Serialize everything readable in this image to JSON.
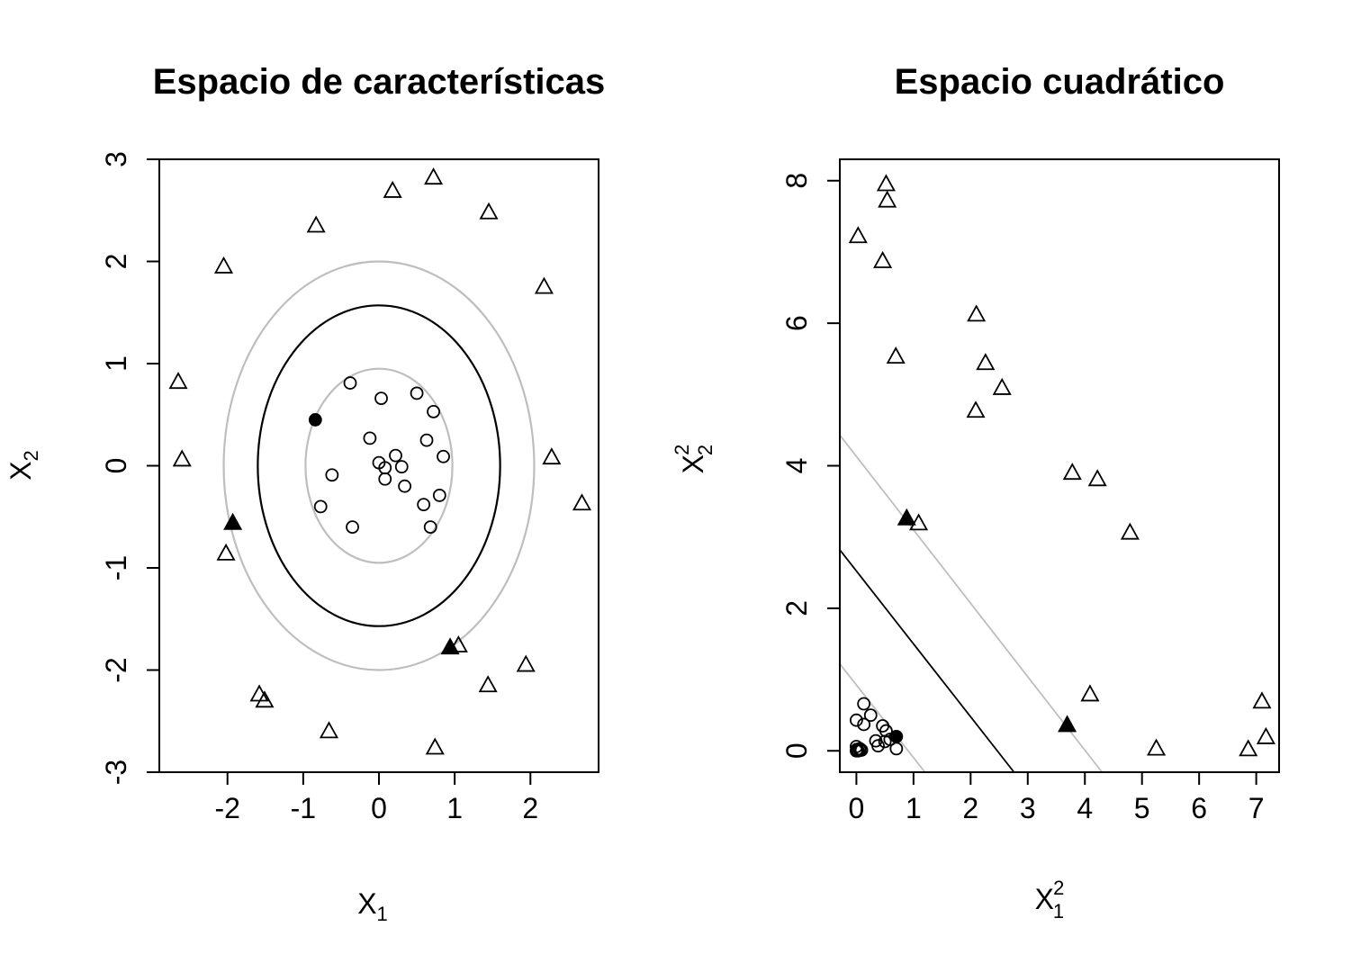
{
  "chart_data": [
    {
      "type": "scatter",
      "title": "Espacio de características",
      "xlabel": "X",
      "xlabel_sub": "1",
      "ylabel": "X",
      "ylabel_sub": "2",
      "xlim": [
        -2.9,
        2.9
      ],
      "ylim": [
        -3.0,
        3.0
      ],
      "xticks": [
        -2,
        -1,
        0,
        1,
        2
      ],
      "yticks": [
        -3,
        -2,
        -1,
        0,
        1,
        2,
        3
      ],
      "grid": false,
      "colors": {
        "decision": "#000000",
        "margin": "#bebebe",
        "points": "#000000"
      },
      "ellipses": [
        {
          "role": "margin-outer",
          "cx": 0,
          "cy": 0,
          "rx": 2.05,
          "ry": 2.0,
          "color": "#bebebe"
        },
        {
          "role": "decision",
          "cx": 0,
          "cy": 0,
          "rx": 1.6,
          "ry": 1.57,
          "color": "#000000"
        },
        {
          "role": "margin-inner",
          "cx": 0,
          "cy": 0,
          "rx": 0.97,
          "ry": 0.95,
          "color": "#bebebe"
        }
      ],
      "series": [
        {
          "marker": "circle",
          "points": [
            [
              -0.38,
              0.81
            ],
            [
              0.5,
              0.71
            ],
            [
              0.03,
              0.66
            ],
            [
              0.72,
              0.53
            ],
            [
              -0.12,
              0.27
            ],
            [
              0.63,
              0.25
            ],
            [
              0.22,
              0.1
            ],
            [
              0.85,
              0.09
            ],
            [
              0.0,
              0.03
            ],
            [
              0.3,
              -0.01
            ],
            [
              0.08,
              -0.02
            ],
            [
              -0.62,
              -0.09
            ],
            [
              0.08,
              -0.13
            ],
            [
              0.34,
              -0.2
            ],
            [
              0.8,
              -0.29
            ],
            [
              0.59,
              -0.38
            ],
            [
              -0.77,
              -0.4
            ],
            [
              -0.35,
              -0.6
            ],
            [
              0.68,
              -0.6
            ]
          ]
        },
        {
          "marker": "triangle",
          "points": [
            [
              0.72,
              2.82
            ],
            [
              0.18,
              2.69
            ],
            [
              1.45,
              2.48
            ],
            [
              -0.83,
              2.35
            ],
            [
              -2.05,
              1.95
            ],
            [
              2.18,
              1.75
            ],
            [
              -2.65,
              0.82
            ],
            [
              -2.6,
              0.06
            ],
            [
              2.28,
              0.08
            ],
            [
              2.68,
              -0.37
            ],
            [
              -2.02,
              -0.86
            ],
            [
              1.05,
              -1.76
            ],
            [
              1.94,
              -1.95
            ],
            [
              1.44,
              -2.15
            ],
            [
              -1.58,
              -2.24
            ],
            [
              -1.51,
              -2.3
            ],
            [
              -0.66,
              -2.6
            ],
            [
              0.74,
              -2.76
            ]
          ]
        },
        {
          "marker": "filled-circle",
          "points": [
            [
              -0.84,
              0.45
            ]
          ]
        },
        {
          "marker": "filled-triangle",
          "points": [
            [
              -1.93,
              -0.56
            ],
            [
              0.94,
              -1.78
            ]
          ]
        }
      ]
    },
    {
      "type": "scatter",
      "title": "Espacio cuadrático",
      "xlabel": "X",
      "xlabel_sub": "1",
      "xlabel_sup": "2",
      "ylabel": "X",
      "ylabel_sub": "2",
      "ylabel_sup": "2",
      "xlim": [
        -0.29,
        7.4
      ],
      "ylim": [
        -0.3,
        8.3
      ],
      "xticks": [
        0,
        1,
        2,
        3,
        4,
        5,
        6,
        7
      ],
      "yticks": [
        0,
        2,
        4,
        6,
        8
      ],
      "grid": false,
      "colors": {
        "decision": "#000000",
        "margin": "#bebebe",
        "points": "#000000"
      },
      "lines": [
        {
          "role": "margin-upper",
          "x1": -0.29,
          "y1": 4.43,
          "x2": 4.3,
          "y2": -0.3,
          "color": "#bebebe"
        },
        {
          "role": "decision",
          "x1": -0.29,
          "y1": 2.82,
          "x2": 2.76,
          "y2": -0.3,
          "color": "#000000"
        },
        {
          "role": "margin-lower",
          "x1": -0.29,
          "y1": 1.22,
          "x2": 1.2,
          "y2": -0.3,
          "color": "#bebebe"
        }
      ],
      "series": [
        {
          "marker": "circle",
          "points": [
            [
              0.13,
              0.66
            ],
            [
              0.25,
              0.5
            ],
            [
              0.0,
              0.43
            ],
            [
              0.13,
              0.37
            ],
            [
              0.46,
              0.35
            ],
            [
              0.52,
              0.28
            ],
            [
              0.34,
              0.14
            ],
            [
              0.38,
              0.07
            ],
            [
              0.5,
              0.13
            ],
            [
              0.59,
              0.16
            ],
            [
              0.7,
              0.03
            ],
            [
              0.0,
              0.06
            ],
            [
              0.09,
              0.01
            ],
            [
              0.01,
              0.02
            ],
            [
              0.06,
              0.01
            ],
            [
              0.0,
              0.0
            ],
            [
              0.03,
              0.0
            ],
            [
              0.06,
              0.03
            ]
          ]
        },
        {
          "marker": "triangle",
          "points": [
            [
              0.52,
              7.95
            ],
            [
              0.54,
              7.72
            ],
            [
              0.03,
              7.22
            ],
            [
              0.46,
              6.87
            ],
            [
              0.69,
              5.53
            ],
            [
              2.1,
              6.12
            ],
            [
              2.26,
              5.44
            ],
            [
              2.55,
              5.09
            ],
            [
              2.09,
              4.77
            ],
            [
              3.78,
              3.9
            ],
            [
              4.22,
              3.81
            ],
            [
              4.79,
              3.06
            ],
            [
              1.09,
              3.19
            ],
            [
              4.09,
              0.79
            ],
            [
              7.1,
              0.69
            ],
            [
              7.17,
              0.19
            ],
            [
              5.25,
              0.03
            ],
            [
              6.86,
              0.02
            ]
          ]
        },
        {
          "marker": "filled-circle",
          "points": [
            [
              0.7,
              0.2
            ]
          ]
        },
        {
          "marker": "filled-triangle",
          "points": [
            [
              0.88,
              3.26
            ],
            [
              3.69,
              0.36
            ]
          ]
        }
      ]
    }
  ]
}
